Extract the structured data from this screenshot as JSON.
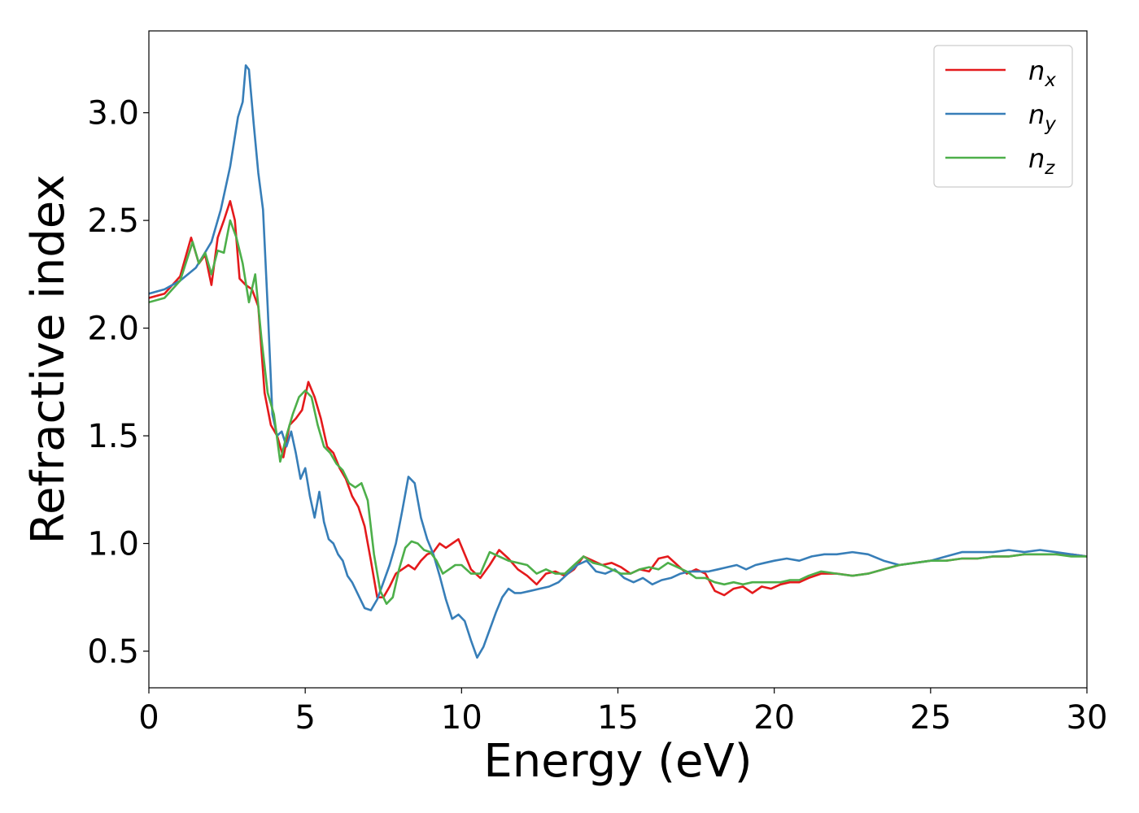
{
  "chart_data": {
    "type": "line",
    "xlabel": "Energy (eV)",
    "ylabel": "Refractive index",
    "xlim": [
      0,
      30
    ],
    "ylim": [
      0.33,
      3.38
    ],
    "xticks": [
      0,
      5,
      10,
      15,
      20,
      25,
      30
    ],
    "xtick_labels": [
      "0",
      "5",
      "10",
      "15",
      "20",
      "25",
      "30"
    ],
    "yticks": [
      0.5,
      1.0,
      1.5,
      2.0,
      2.5,
      3.0
    ],
    "ytick_labels": [
      "0.5",
      "1.0",
      "1.5",
      "2.0",
      "2.5",
      "3.0"
    ],
    "grid": false,
    "legend_position": "top-right",
    "series": [
      {
        "name": "n_x",
        "label_base": "n",
        "label_sub": "x",
        "color": "#e41a1c",
        "x": [
          0,
          0.5,
          1.0,
          1.35,
          1.6,
          1.8,
          2.0,
          2.2,
          2.4,
          2.6,
          2.75,
          2.9,
          3.1,
          3.3,
          3.5,
          3.7,
          3.9,
          4.1,
          4.3,
          4.5,
          4.7,
          4.9,
          5.1,
          5.3,
          5.5,
          5.7,
          5.9,
          6.1,
          6.3,
          6.5,
          6.7,
          6.9,
          7.1,
          7.3,
          7.5,
          7.7,
          7.9,
          8.1,
          8.3,
          8.5,
          8.7,
          8.9,
          9.1,
          9.3,
          9.5,
          9.7,
          9.9,
          10.1,
          10.3,
          10.6,
          10.9,
          11.2,
          11.5,
          11.8,
          12.1,
          12.4,
          12.7,
          13.0,
          13.3,
          13.6,
          13.9,
          14.2,
          14.5,
          14.8,
          15.1,
          15.4,
          15.7,
          16.0,
          16.3,
          16.6,
          16.9,
          17.2,
          17.5,
          17.8,
          18.1,
          18.4,
          18.7,
          19.0,
          19.3,
          19.6,
          19.9,
          20.2,
          20.5,
          20.8,
          21.1,
          21.5,
          22.0,
          22.5,
          23.0,
          23.5,
          24.0,
          24.5,
          25.0,
          25.5,
          26.0,
          26.5,
          27.0,
          27.5,
          28.0,
          28.5,
          29.0,
          29.5,
          30.0
        ],
        "values": [
          2.14,
          2.16,
          2.24,
          2.42,
          2.3,
          2.34,
          2.2,
          2.42,
          2.5,
          2.59,
          2.5,
          2.23,
          2.2,
          2.18,
          2.1,
          1.7,
          1.55,
          1.5,
          1.4,
          1.55,
          1.58,
          1.62,
          1.75,
          1.68,
          1.58,
          1.45,
          1.42,
          1.35,
          1.3,
          1.22,
          1.17,
          1.08,
          0.92,
          0.75,
          0.75,
          0.8,
          0.86,
          0.88,
          0.9,
          0.88,
          0.92,
          0.95,
          0.96,
          1.0,
          0.98,
          1.0,
          1.02,
          0.95,
          0.88,
          0.84,
          0.9,
          0.97,
          0.93,
          0.88,
          0.85,
          0.81,
          0.86,
          0.87,
          0.85,
          0.88,
          0.94,
          0.92,
          0.9,
          0.91,
          0.89,
          0.86,
          0.88,
          0.87,
          0.93,
          0.94,
          0.9,
          0.86,
          0.88,
          0.86,
          0.78,
          0.76,
          0.79,
          0.8,
          0.77,
          0.8,
          0.79,
          0.81,
          0.82,
          0.82,
          0.84,
          0.86,
          0.86,
          0.85,
          0.86,
          0.88,
          0.9,
          0.91,
          0.92,
          0.92,
          0.93,
          0.93,
          0.94,
          0.94,
          0.95,
          0.95,
          0.95,
          0.95,
          0.94
        ]
      },
      {
        "name": "n_y",
        "label_base": "n",
        "label_sub": "y",
        "color": "#377eb8",
        "x": [
          0,
          0.5,
          1.0,
          1.5,
          2.0,
          2.3,
          2.6,
          2.85,
          3.0,
          3.1,
          3.2,
          3.35,
          3.5,
          3.65,
          3.8,
          3.95,
          4.1,
          4.25,
          4.4,
          4.55,
          4.7,
          4.85,
          5.0,
          5.15,
          5.3,
          5.45,
          5.6,
          5.75,
          5.9,
          6.05,
          6.2,
          6.35,
          6.5,
          6.7,
          6.9,
          7.1,
          7.3,
          7.5,
          7.7,
          7.9,
          8.1,
          8.3,
          8.5,
          8.7,
          8.9,
          9.1,
          9.3,
          9.5,
          9.7,
          9.9,
          10.1,
          10.3,
          10.5,
          10.7,
          10.9,
          11.1,
          11.3,
          11.5,
          11.7,
          11.9,
          12.2,
          12.5,
          12.8,
          13.1,
          13.4,
          13.7,
          14.0,
          14.3,
          14.6,
          14.9,
          15.2,
          15.5,
          15.8,
          16.1,
          16.4,
          16.7,
          17.0,
          17.3,
          17.6,
          17.9,
          18.2,
          18.5,
          18.8,
          19.1,
          19.4,
          19.7,
          20.0,
          20.4,
          20.8,
          21.2,
          21.6,
          22.0,
          22.5,
          23.0,
          23.5,
          24.0,
          24.5,
          25.0,
          25.5,
          26.0,
          26.5,
          27.0,
          27.5,
          28.0,
          28.5,
          29.0,
          29.5,
          30.0
        ],
        "values": [
          2.16,
          2.18,
          2.22,
          2.28,
          2.4,
          2.55,
          2.75,
          2.98,
          3.05,
          3.22,
          3.2,
          2.95,
          2.72,
          2.55,
          2.1,
          1.6,
          1.5,
          1.52,
          1.45,
          1.52,
          1.42,
          1.3,
          1.35,
          1.22,
          1.12,
          1.24,
          1.1,
          1.02,
          1.0,
          0.95,
          0.92,
          0.85,
          0.82,
          0.76,
          0.7,
          0.69,
          0.74,
          0.82,
          0.9,
          1.0,
          1.15,
          1.31,
          1.28,
          1.12,
          1.02,
          0.95,
          0.85,
          0.74,
          0.65,
          0.67,
          0.64,
          0.55,
          0.47,
          0.52,
          0.6,
          0.68,
          0.75,
          0.79,
          0.77,
          0.77,
          0.78,
          0.79,
          0.8,
          0.82,
          0.86,
          0.9,
          0.92,
          0.87,
          0.86,
          0.88,
          0.84,
          0.82,
          0.84,
          0.81,
          0.83,
          0.84,
          0.86,
          0.87,
          0.87,
          0.87,
          0.88,
          0.89,
          0.9,
          0.88,
          0.9,
          0.91,
          0.92,
          0.93,
          0.92,
          0.94,
          0.95,
          0.95,
          0.96,
          0.95,
          0.92,
          0.9,
          0.91,
          0.92,
          0.94,
          0.96,
          0.96,
          0.96,
          0.97,
          0.96,
          0.97,
          0.96,
          0.95,
          0.94
        ]
      },
      {
        "name": "n_z",
        "label_base": "n",
        "label_sub": "z",
        "color": "#4daf4a",
        "x": [
          0,
          0.5,
          1.0,
          1.4,
          1.6,
          1.8,
          2.0,
          2.2,
          2.4,
          2.6,
          2.8,
          3.0,
          3.2,
          3.4,
          3.6,
          3.8,
          4.0,
          4.2,
          4.4,
          4.6,
          4.8,
          5.0,
          5.2,
          5.4,
          5.6,
          5.8,
          6.0,
          6.2,
          6.4,
          6.6,
          6.8,
          7.0,
          7.2,
          7.4,
          7.6,
          7.8,
          8.0,
          8.2,
          8.4,
          8.6,
          8.8,
          9.0,
          9.2,
          9.4,
          9.6,
          9.8,
          10.0,
          10.3,
          10.6,
          10.9,
          11.2,
          11.5,
          11.8,
          12.1,
          12.4,
          12.7,
          13.0,
          13.3,
          13.6,
          13.9,
          14.2,
          14.5,
          14.8,
          15.1,
          15.4,
          15.7,
          16.0,
          16.3,
          16.6,
          16.9,
          17.2,
          17.5,
          17.8,
          18.1,
          18.4,
          18.7,
          19.0,
          19.3,
          19.6,
          19.9,
          20.2,
          20.5,
          20.8,
          21.1,
          21.5,
          22.0,
          22.5,
          23.0,
          23.5,
          24.0,
          24.5,
          25.0,
          25.5,
          26.0,
          26.5,
          27.0,
          27.5,
          28.0,
          28.5,
          29.0,
          29.5,
          30.0
        ],
        "values": [
          2.12,
          2.14,
          2.22,
          2.4,
          2.3,
          2.35,
          2.25,
          2.36,
          2.35,
          2.5,
          2.42,
          2.3,
          2.12,
          2.25,
          1.95,
          1.7,
          1.6,
          1.38,
          1.5,
          1.6,
          1.68,
          1.71,
          1.68,
          1.55,
          1.45,
          1.42,
          1.37,
          1.34,
          1.28,
          1.26,
          1.28,
          1.2,
          0.95,
          0.78,
          0.72,
          0.75,
          0.88,
          0.98,
          1.01,
          1.0,
          0.97,
          0.96,
          0.92,
          0.86,
          0.88,
          0.9,
          0.9,
          0.86,
          0.86,
          0.96,
          0.94,
          0.92,
          0.91,
          0.9,
          0.86,
          0.88,
          0.86,
          0.86,
          0.9,
          0.94,
          0.91,
          0.9,
          0.88,
          0.86,
          0.86,
          0.88,
          0.89,
          0.88,
          0.91,
          0.89,
          0.87,
          0.84,
          0.84,
          0.82,
          0.81,
          0.82,
          0.81,
          0.82,
          0.82,
          0.82,
          0.82,
          0.83,
          0.83,
          0.85,
          0.87,
          0.86,
          0.85,
          0.86,
          0.88,
          0.9,
          0.91,
          0.92,
          0.92,
          0.93,
          0.93,
          0.94,
          0.94,
          0.95,
          0.95,
          0.95,
          0.94,
          0.94
        ]
      }
    ]
  }
}
